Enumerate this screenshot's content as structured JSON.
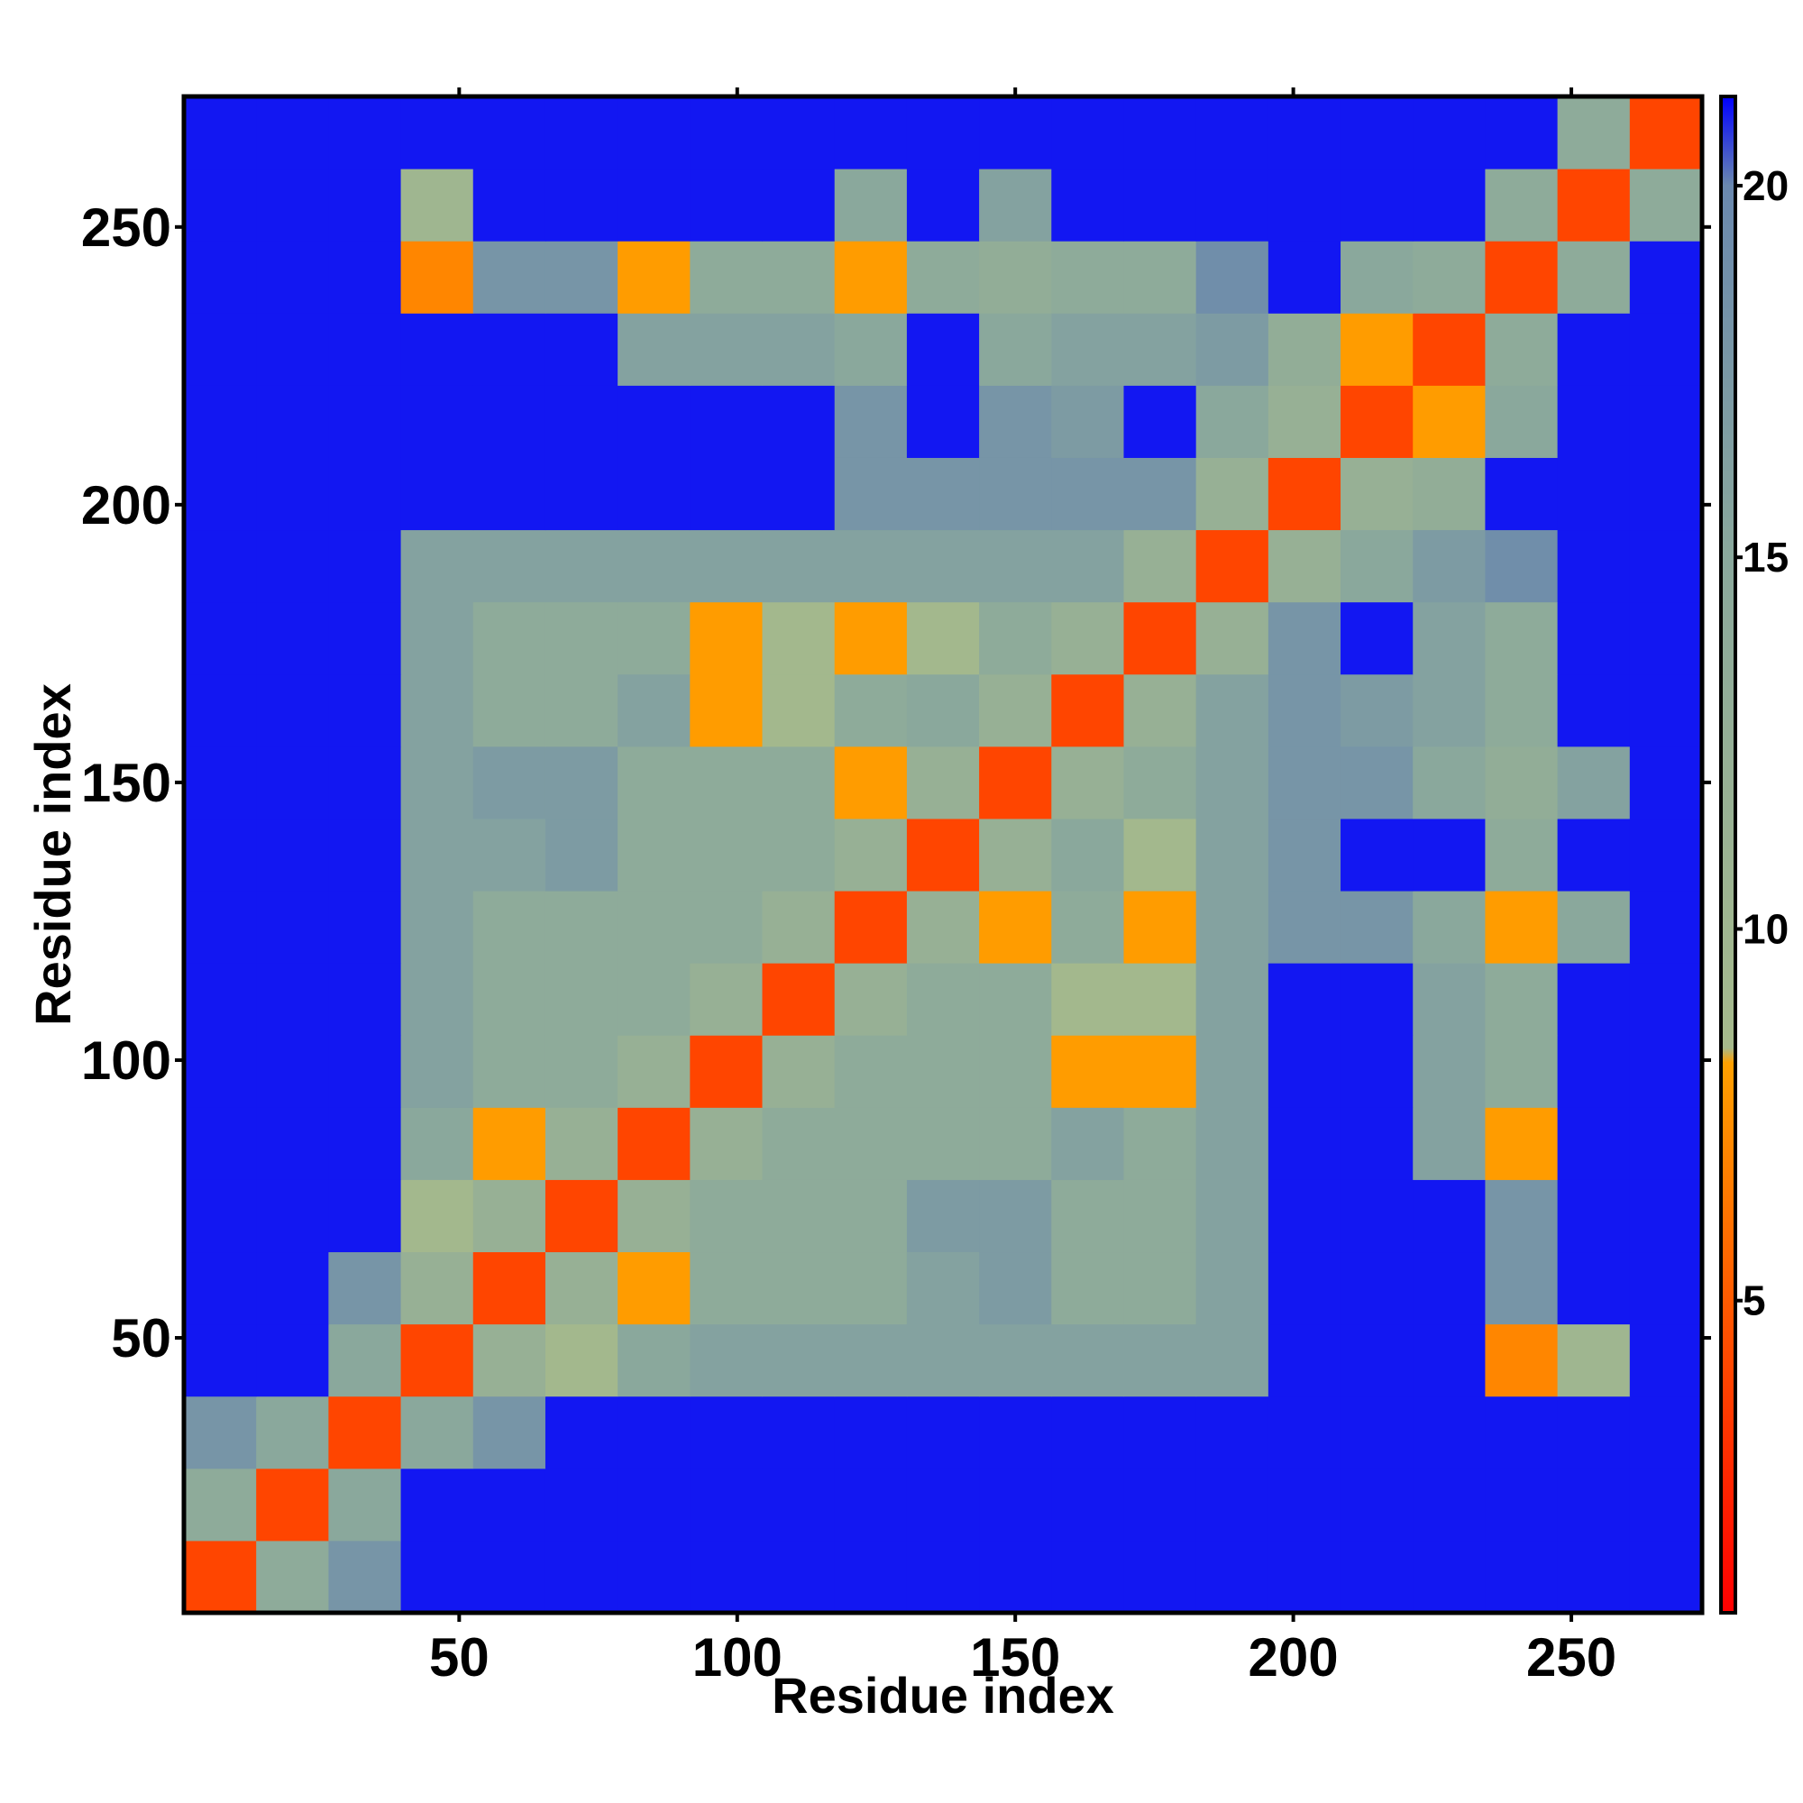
{
  "chart_data": {
    "type": "heatmap",
    "xlabel": "Residue index",
    "ylabel": "Residue index",
    "xbins": [
      0.5,
      13.5,
      26.5,
      39.5,
      52.5,
      65.5,
      78.5,
      91.5,
      104.5,
      117.5,
      130.5,
      143.5,
      156.5,
      169.5,
      182.5,
      195.5,
      208.5,
      221.5,
      234.5,
      247.5,
      260.5,
      273.5
    ],
    "ybins": [
      0.5,
      13.5,
      26.5,
      39.5,
      52.5,
      65.5,
      78.5,
      91.5,
      104.5,
      117.5,
      130.5,
      143.5,
      156.5,
      169.5,
      182.5,
      195.5,
      208.5,
      221.5,
      234.5,
      247.5,
      260.5,
      273.5
    ],
    "xlim": [
      0.5,
      273.5
    ],
    "ylim": [
      0.5,
      273.5
    ],
    "xticks": [
      50,
      100,
      150,
      200,
      250
    ],
    "yticks": [
      50,
      100,
      150,
      200,
      250
    ],
    "z": [
      [
        4,
        14,
        18,
        21,
        21,
        21,
        21,
        21,
        21,
        21,
        21,
        21,
        21,
        21,
        21,
        21,
        21,
        21,
        21,
        21,
        21
      ],
      [
        14,
        4,
        15,
        21,
        21,
        21,
        21,
        21,
        21,
        21,
        21,
        21,
        21,
        21,
        21,
        21,
        21,
        21,
        21,
        21,
        21
      ],
      [
        18,
        15,
        4,
        15,
        18,
        21,
        21,
        21,
        21,
        21,
        21,
        21,
        21,
        21,
        21,
        21,
        21,
        21,
        21,
        21,
        21
      ],
      [
        21,
        21,
        15,
        4,
        12,
        9,
        15,
        16,
        16,
        16,
        16,
        16,
        16,
        16,
        16,
        21,
        21,
        21,
        7,
        10,
        21
      ],
      [
        21,
        21,
        18,
        12,
        4,
        12,
        8,
        14,
        14,
        14,
        16,
        17,
        14,
        14,
        16,
        21,
        21,
        21,
        18,
        21,
        21
      ],
      [
        21,
        21,
        21,
        9,
        12,
        4,
        12,
        14,
        14,
        14,
        17,
        17,
        14,
        14,
        16,
        21,
        21,
        21,
        18,
        21,
        21
      ],
      [
        21,
        21,
        21,
        15,
        8,
        12,
        4,
        12,
        14,
        14,
        14,
        14,
        16,
        14,
        16,
        21,
        21,
        16,
        8,
        21,
        21
      ],
      [
        21,
        21,
        21,
        16,
        14,
        14,
        12,
        4,
        12,
        14,
        14,
        14,
        8,
        8,
        16,
        21,
        21,
        16,
        14,
        21,
        21
      ],
      [
        21,
        21,
        21,
        16,
        14,
        14,
        14,
        12,
        4,
        12,
        14,
        14,
        9,
        9,
        16,
        21,
        21,
        16,
        14,
        21,
        21
      ],
      [
        21,
        21,
        21,
        16,
        14,
        14,
        14,
        14,
        12,
        4,
        12,
        8,
        14,
        8,
        16,
        18,
        18,
        15,
        8,
        15,
        21
      ],
      [
        21,
        21,
        21,
        16,
        16,
        17,
        14,
        14,
        14,
        12,
        4,
        12,
        15,
        9,
        16,
        18,
        21,
        21,
        14,
        21,
        21
      ],
      [
        21,
        21,
        21,
        16,
        17,
        17,
        14,
        14,
        14,
        8,
        12,
        4,
        12,
        14,
        16,
        18,
        18,
        15,
        13,
        16,
        21
      ],
      [
        21,
        21,
        21,
        16,
        14,
        14,
        16,
        8,
        9,
        14,
        15,
        12,
        4,
        12,
        16,
        18,
        17,
        16,
        14,
        21,
        21
      ],
      [
        21,
        21,
        21,
        16,
        14,
        14,
        14,
        8,
        9,
        8,
        9,
        14,
        12,
        4,
        12,
        18,
        21,
        16,
        14,
        21,
        21
      ],
      [
        21,
        21,
        21,
        16,
        16,
        16,
        16,
        16,
        16,
        16,
        16,
        16,
        16,
        12,
        4,
        12,
        15,
        17,
        19,
        21,
        21
      ],
      [
        21,
        21,
        21,
        21,
        21,
        21,
        21,
        21,
        21,
        18,
        18,
        18,
        18,
        18,
        12,
        4,
        12,
        13,
        21,
        21,
        21
      ],
      [
        21,
        21,
        21,
        21,
        21,
        21,
        21,
        21,
        21,
        18,
        21,
        18,
        17,
        21,
        15,
        12,
        4,
        8,
        15,
        21,
        21
      ],
      [
        21,
        21,
        21,
        21,
        21,
        21,
        16,
        16,
        16,
        15,
        21,
        15,
        16,
        16,
        17,
        13,
        8,
        4,
        14,
        21,
        21
      ],
      [
        21,
        21,
        21,
        7,
        18,
        18,
        8,
        14,
        14,
        8,
        14,
        13,
        14,
        14,
        19,
        21,
        15,
        14,
        4,
        14,
        21
      ],
      [
        21,
        21,
        21,
        10,
        21,
        21,
        21,
        21,
        21,
        15,
        21,
        16,
        21,
        21,
        21,
        21,
        21,
        21,
        14,
        4,
        14
      ],
      [
        21,
        21,
        21,
        21,
        21,
        21,
        21,
        21,
        21,
        21,
        21,
        21,
        21,
        21,
        21,
        21,
        21,
        21,
        21,
        14,
        4
      ]
    ],
    "clim": [
      0.8,
      21.2
    ],
    "cticks": [
      5,
      10,
      15,
      20
    ],
    "colorscale": [
      [
        0.8,
        "#ff0000"
      ],
      [
        5,
        "#ff5a00"
      ],
      [
        8.2,
        "#ffa000"
      ],
      [
        8.4,
        "#a6ba8c"
      ],
      [
        15,
        "#8aa89c"
      ],
      [
        20,
        "#6a88ae"
      ],
      [
        21.2,
        "#0000ff"
      ]
    ]
  }
}
